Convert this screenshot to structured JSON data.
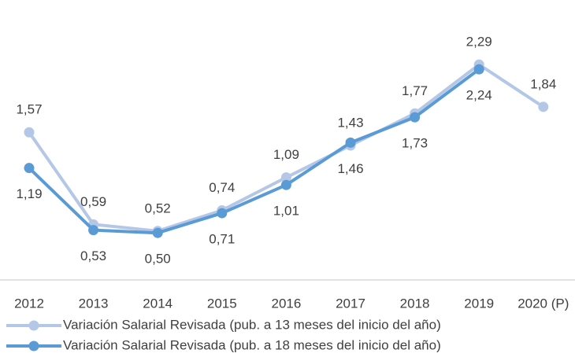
{
  "chart_data": {
    "type": "line",
    "categories": [
      "2012",
      "2013",
      "2014",
      "2015",
      "2016",
      "2017",
      "2018",
      "2019",
      "2020 (P)"
    ],
    "series": [
      {
        "name": "Variación Salarial Revisada (pub. a 13 meses del inicio del año)",
        "color": "#b4c7e7",
        "values": [
          1.57,
          0.59,
          0.52,
          0.74,
          1.09,
          1.43,
          1.77,
          2.29,
          1.84
        ],
        "value_labels": [
          "1,57",
          "0,59",
          "0,52",
          "0,74",
          "1,09",
          "1,43",
          "1,77",
          "2,29",
          "1,84"
        ]
      },
      {
        "name": "Variación Salarial Revisada (pub. a 18 meses del inicio del año)",
        "color": "#5b9bd5",
        "values": [
          1.19,
          0.53,
          0.5,
          0.71,
          1.01,
          1.46,
          1.73,
          2.24,
          null
        ],
        "value_labels": [
          "1,19",
          "0,53",
          "0,50",
          "0,71",
          "1,01",
          "1,46",
          "1,73",
          "2,24",
          null
        ]
      }
    ],
    "ylim": [
      0,
      2.5
    ]
  }
}
